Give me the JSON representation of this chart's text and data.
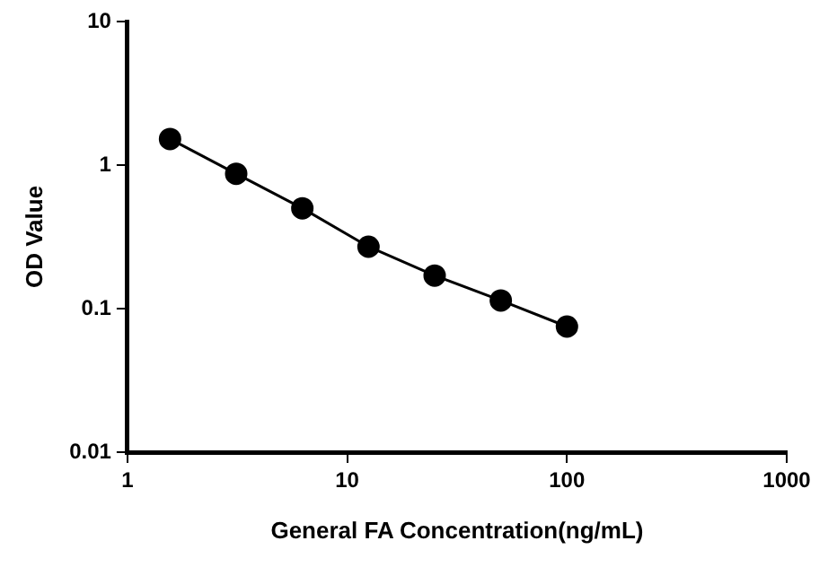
{
  "chart_data": {
    "type": "line",
    "xlabel": "General FA Concentration(ng/mL)",
    "ylabel": "OD Value",
    "x": [
      1.5625,
      3.125,
      6.25,
      12.5,
      25,
      50,
      100
    ],
    "series": [
      {
        "color": "#000000",
        "values": [
          1.52,
          0.87,
          0.5,
          0.27,
          0.17,
          0.114,
          0.075
        ]
      }
    ],
    "log": "xy",
    "xlim": [
      1,
      1000
    ],
    "xticks": [
      1,
      10,
      100,
      1000
    ],
    "ylim": [
      0.01,
      10
    ],
    "yticks": [
      0.01,
      0.1,
      1,
      10
    ],
    "grid": false,
    "legend": false,
    "marker": "circle",
    "line_style": "solid"
  }
}
